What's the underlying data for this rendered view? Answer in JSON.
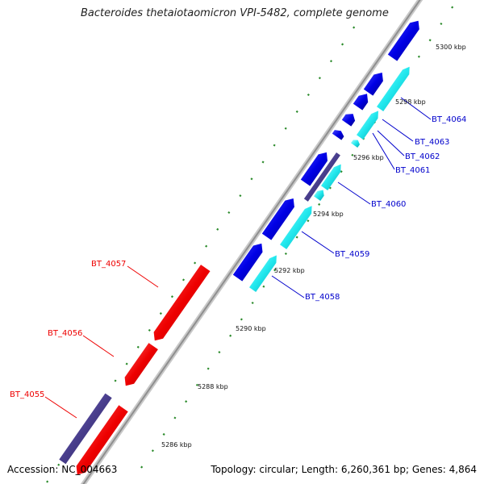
{
  "title": "Bacteroides thetaiotaomicron VPI-5482, complete genome",
  "accession": "Accession: NC_004663",
  "summary": "Topology: circular; Length: 6,260,361 bp; Genes: 4,864",
  "ticks": [
    "5286 kbp",
    "5288 kbp",
    "5290 kbp",
    "5292 kbp",
    "5294 kbp",
    "5296 kbp",
    "5298 kbp",
    "5300 kbp"
  ],
  "genes": [
    {
      "name": "BT_4055",
      "strand": "reverse",
      "color": "#ff0000"
    },
    {
      "name": "BT_4056",
      "strand": "reverse",
      "color": "#ff0000"
    },
    {
      "name": "BT_4057",
      "strand": "reverse",
      "color": "#ff0000"
    },
    {
      "name": "BT_4058",
      "strand": "forward",
      "color": "#0000cc"
    },
    {
      "name": "BT_4059",
      "strand": "forward",
      "color": "#0000cc"
    },
    {
      "name": "BT_4060",
      "strand": "forward",
      "color": "#0000cc"
    },
    {
      "name": "BT_4061",
      "strand": "forward",
      "color": "#0000cc"
    },
    {
      "name": "BT_4062",
      "strand": "forward",
      "color": "#0000cc"
    },
    {
      "name": "BT_4063",
      "strand": "forward",
      "color": "#0000cc"
    },
    {
      "name": "BT_4064",
      "strand": "forward",
      "color": "#0000cc"
    }
  ],
  "colors": {
    "forward_cds": "#0000ee",
    "reverse_cds": "#ee0000",
    "forward_feature": "#00ffff",
    "reverse_feature": "#4a3f94",
    "backbone": "#999999",
    "tick": "#2a8a2a"
  }
}
